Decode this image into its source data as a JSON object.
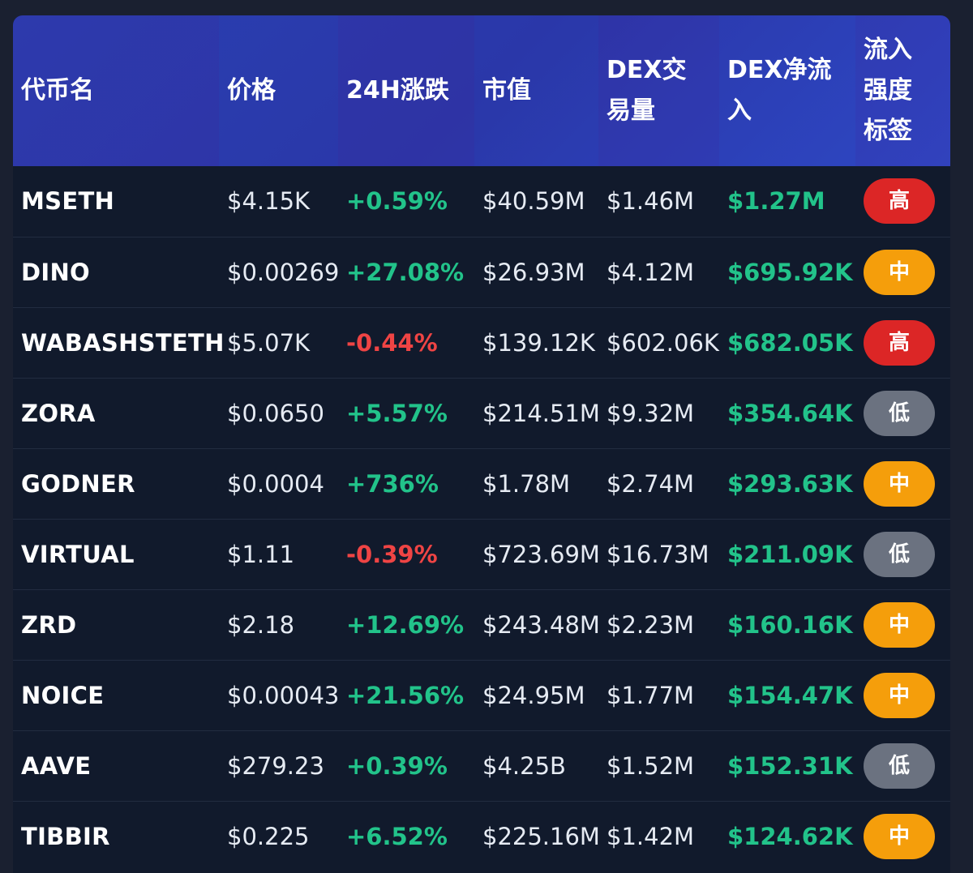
{
  "table": {
    "headers": [
      "代币名",
      "价格",
      "24H涨跌",
      "市值",
      "DEX交易量",
      "DEX净流入",
      "流入强度标签"
    ],
    "rows": [
      {
        "name": "MSETH",
        "price": "$4.15K",
        "change": "+0.59%",
        "direction": "up",
        "mcap": "$40.59M",
        "volume": "$1.46M",
        "inflow": "$1.27M",
        "tag": "高",
        "level": "high"
      },
      {
        "name": "DINO",
        "price": "$0.00269",
        "change": "+27.08%",
        "direction": "up",
        "mcap": "$26.93M",
        "volume": "$4.12M",
        "inflow": "$695.92K",
        "tag": "中",
        "level": "mid"
      },
      {
        "name": "WABASHSTETH",
        "price": "$5.07K",
        "change": "-0.44%",
        "direction": "down",
        "mcap": "$139.12K",
        "volume": "$602.06K",
        "inflow": "$682.05K",
        "tag": "高",
        "level": "high"
      },
      {
        "name": "ZORA",
        "price": "$0.0650",
        "change": "+5.57%",
        "direction": "up",
        "mcap": "$214.51M",
        "volume": "$9.32M",
        "inflow": "$354.64K",
        "tag": "低",
        "level": "low"
      },
      {
        "name": "GODNER",
        "price": "$0.0004",
        "change": "+736%",
        "direction": "up",
        "mcap": "$1.78M",
        "volume": "$2.74M",
        "inflow": "$293.63K",
        "tag": "中",
        "level": "mid"
      },
      {
        "name": "VIRTUAL",
        "price": "$1.11",
        "change": "-0.39%",
        "direction": "down",
        "mcap": "$723.69M",
        "volume": "$16.73M",
        "inflow": "$211.09K",
        "tag": "低",
        "level": "low"
      },
      {
        "name": "ZRD",
        "price": "$2.18",
        "change": "+12.69%",
        "direction": "up",
        "mcap": "$243.48M",
        "volume": "$2.23M",
        "inflow": "$160.16K",
        "tag": "中",
        "level": "mid"
      },
      {
        "name": "NOICE",
        "price": "$0.00043",
        "change": "+21.56%",
        "direction": "up",
        "mcap": "$24.95M",
        "volume": "$1.77M",
        "inflow": "$154.47K",
        "tag": "中",
        "level": "mid"
      },
      {
        "name": "AAVE",
        "price": "$279.23",
        "change": "+0.39%",
        "direction": "up",
        "mcap": "$4.25B",
        "volume": "$1.52M",
        "inflow": "$152.31K",
        "tag": "低",
        "level": "low"
      },
      {
        "name": "TIBBIR",
        "price": "$0.225",
        "change": "+6.52%",
        "direction": "up",
        "mcap": "$225.16M",
        "volume": "$1.42M",
        "inflow": "$124.62K",
        "tag": "中",
        "level": "mid"
      }
    ]
  },
  "colors": {
    "background": "#1a2030",
    "card": "#111a2c",
    "header_gradient": [
      "#2a3fb0",
      "#2f48c4"
    ],
    "positive": "#22c38a",
    "negative": "#ef4444",
    "tag_high": "#dc2626",
    "tag_mid": "#f59e0b",
    "tag_low": "#6b7280"
  }
}
